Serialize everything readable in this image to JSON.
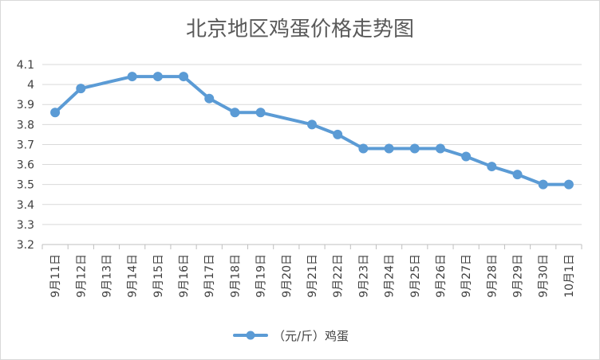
{
  "chart_data": {
    "type": "line",
    "title": "北京地区鸡蛋价格走势图",
    "categories": [
      "9月11日",
      "9月12日",
      "9月13日",
      "9月14日",
      "9月15日",
      "9月16日",
      "9月17日",
      "9月18日",
      "9月19日",
      "9月20日",
      "9月21日",
      "9月22日",
      "9月23日",
      "9月24日",
      "9月25日",
      "9月26日",
      "9月27日",
      "9月28日",
      "9月29日",
      "9月30日",
      "10月1日"
    ],
    "series": [
      {
        "name": "（元/斤）鸡蛋",
        "color": "#5b9bd5",
        "values": [
          3.86,
          3.98,
          null,
          4.04,
          4.04,
          4.04,
          3.93,
          3.86,
          3.86,
          null,
          3.8,
          3.75,
          3.68,
          3.68,
          3.68,
          3.68,
          3.64,
          3.59,
          3.55,
          3.5,
          3.5
        ]
      }
    ],
    "yticks": [
      "3.2",
      "3.3",
      "3.4",
      "3.5",
      "3.6",
      "3.7",
      "3.8",
      "3.9",
      "4",
      "4.1"
    ],
    "ylim": [
      3.2,
      4.1
    ],
    "grid": true,
    "legend_position": "bottom",
    "xlabel": "",
    "ylabel": ""
  }
}
